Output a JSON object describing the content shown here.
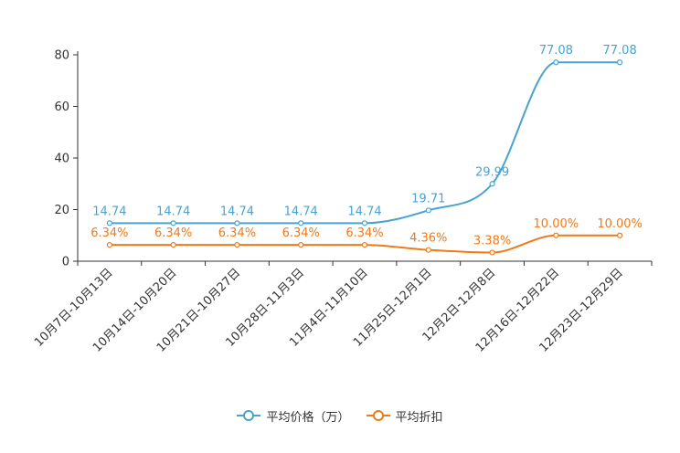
{
  "chart_data": {
    "type": "line",
    "title": "",
    "xlabel": "",
    "ylabel": "",
    "ylim": [
      0,
      80
    ],
    "yticks": [
      0,
      20,
      40,
      60,
      80
    ],
    "ytick_labels": [
      "0",
      "20",
      "40",
      "60",
      "80"
    ],
    "categories": [
      "10月7日-10月13日",
      "10月14日-10月20日",
      "10月21日-10月27日",
      "10月28日-11月3日",
      "11月4日-11月10日",
      "11月25日-12月1日",
      "12月2日-12月8日",
      "12月16日-12月22日",
      "12月23日-12月29日"
    ],
    "series": [
      {
        "name": "平均价格（万）",
        "color": "#4aa3cf",
        "values": [
          14.74,
          14.74,
          14.74,
          14.74,
          14.74,
          19.71,
          29.99,
          77.08,
          77.08
        ],
        "labels": [
          "14.74",
          "14.74",
          "14.74",
          "14.74",
          "14.74",
          "19.71",
          "29.99",
          "77.08",
          "77.08"
        ]
      },
      {
        "name": "平均折扣",
        "color": "#f07a1a",
        "values": [
          6.34,
          6.34,
          6.34,
          6.34,
          6.34,
          4.36,
          3.38,
          10.0,
          10.0
        ],
        "labels": [
          "6.34%",
          "6.34%",
          "6.34%",
          "6.34%",
          "6.34%",
          "4.36%",
          "3.38%",
          "10.00%",
          "10.00%"
        ]
      }
    ],
    "legend_position": "bottom-center",
    "grid": false
  }
}
